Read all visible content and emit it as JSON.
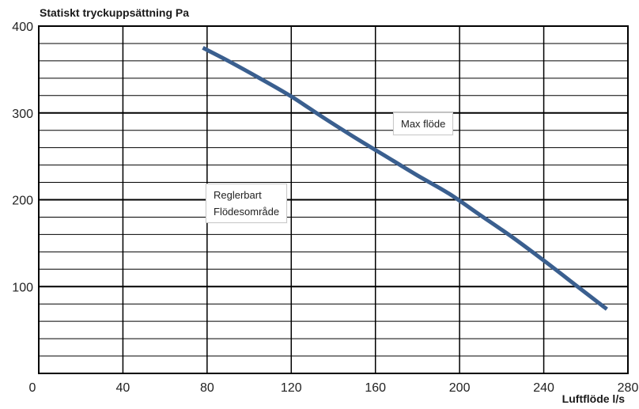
{
  "chart_data": {
    "type": "line",
    "ylabel": "Statiskt tryckuppsättning Pa",
    "xlabel": "Luftflöde l/s",
    "xlim": [
      0,
      280
    ],
    "ylim": [
      0,
      400
    ],
    "x_ticks": [
      0,
      40,
      80,
      120,
      160,
      200,
      240,
      280
    ],
    "y_ticks": [
      100,
      200,
      300,
      400
    ],
    "grid": true,
    "series": [
      {
        "color": "#3a5f8f",
        "x": [
          78,
          90,
          105,
          120,
          135,
          150,
          165,
          180,
          195,
          210,
          225,
          240,
          255,
          270
        ],
        "y": [
          375,
          360,
          340,
          319,
          295,
          272,
          250,
          228,
          207,
          182,
          157,
          130,
          102,
          74
        ]
      }
    ],
    "annotations": [
      {
        "id": "max_flow",
        "lines": [
          "Max flöde"
        ]
      },
      {
        "id": "adjustable_range",
        "lines": [
          "Reglerbart",
          "Flödesområde"
        ]
      }
    ]
  },
  "colors": {
    "line": "#3a5f8f",
    "grid": "#000000"
  }
}
